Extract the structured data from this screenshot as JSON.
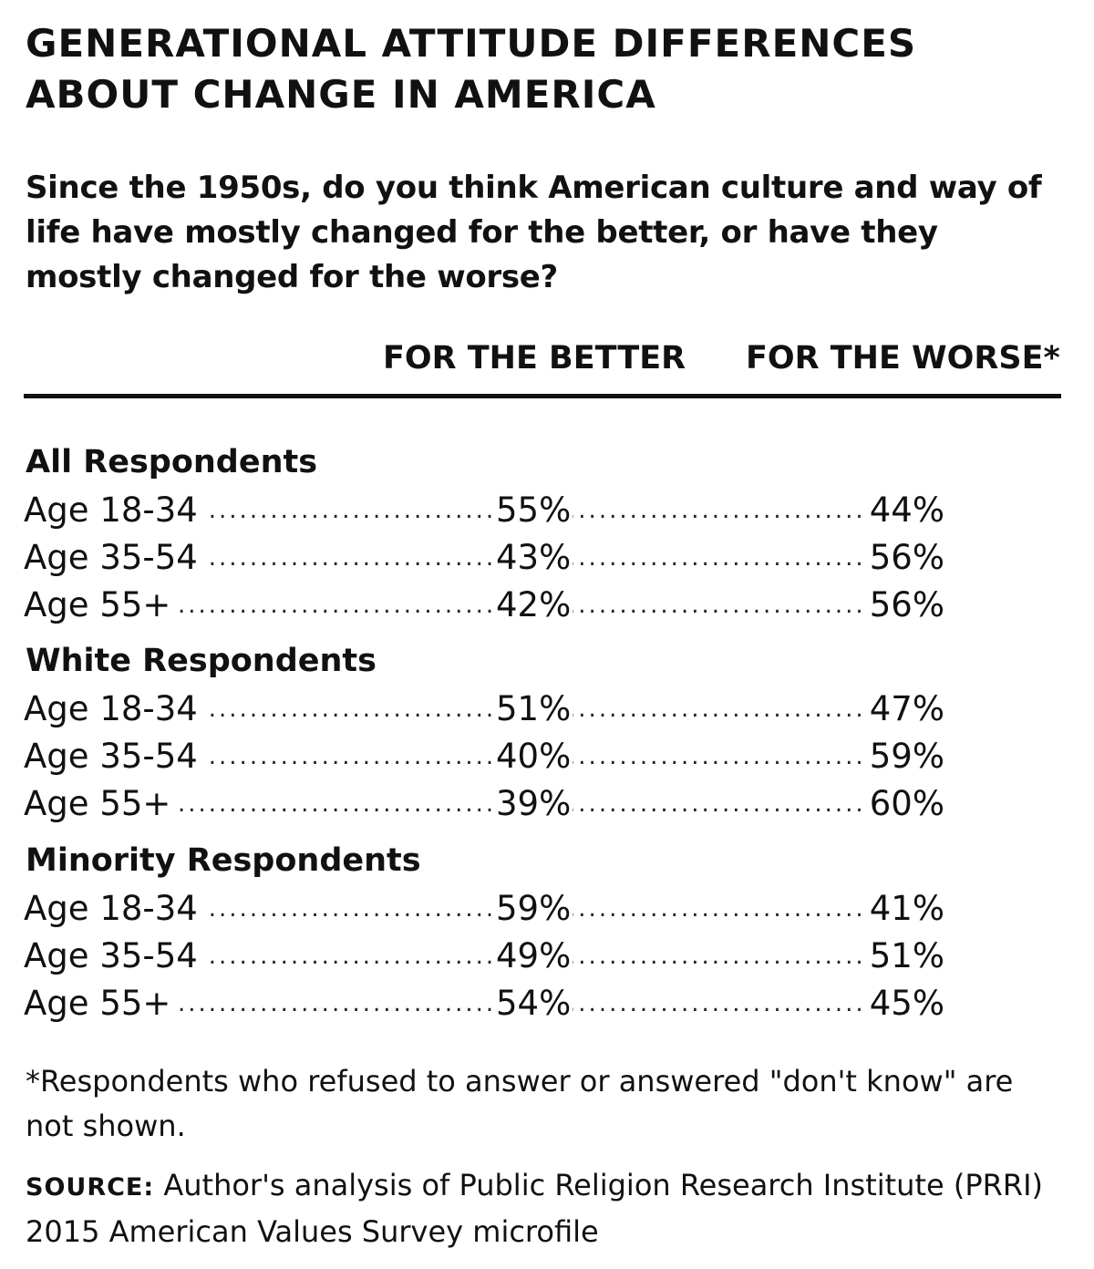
{
  "chart_data": {
    "type": "table",
    "title": "GENERATIONAL ATTITUDE DIFFERENCES ABOUT CHANGE IN AMERICA",
    "question": "Since the 1950s, do you think American culture and way of life have mostly changed for the better, or have they mostly changed for the worse?",
    "columns": [
      "FOR THE BETTER",
      "FOR THE WORSE*"
    ],
    "groups": [
      {
        "label": "All Respondents",
        "rows": [
          {
            "label": "Age 18-34",
            "better": "55%",
            "worse": "44%"
          },
          {
            "label": "Age 35-54",
            "better": "43%",
            "worse": "56%"
          },
          {
            "label": "Age 55+",
            "better": "42%",
            "worse": "56%"
          }
        ]
      },
      {
        "label": "White Respondents",
        "rows": [
          {
            "label": "Age 18-34",
            "better": "51%",
            "worse": "47%"
          },
          {
            "label": "Age 35-54",
            "better": "40%",
            "worse": "59%"
          },
          {
            "label": "Age 55+",
            "better": "39%",
            "worse": "60%"
          }
        ]
      },
      {
        "label": "Minority Respondents",
        "rows": [
          {
            "label": "Age 18-34",
            "better": "59%",
            "worse": "41%"
          },
          {
            "label": "Age 35-54",
            "better": "49%",
            "worse": "51%"
          },
          {
            "label": "Age 55+",
            "better": "54%",
            "worse": "45%"
          }
        ]
      }
    ],
    "footnote": "*Respondents who refused to answer or answered \"don't know\" are not shown.",
    "source_label": "SOURCE:",
    "source_text": "Author's analysis of Public Religion Research Institute (PRRI) 2015 American Values Survey microfile"
  }
}
